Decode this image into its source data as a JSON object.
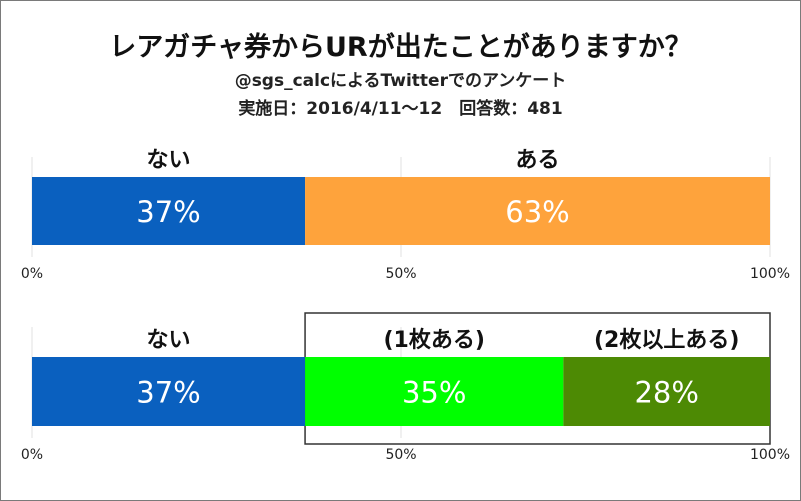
{
  "title": "レアガチャ券からURが出たことがありますか？",
  "subtitle": "@sgs_calcによるTwitterでのアンケート",
  "survey_info": "実施日：2016/4/11〜12　回答数：481",
  "chart_data": [
    {
      "type": "bar",
      "orientation": "horizontal-stacked-100",
      "categories": [
        "ない",
        "ある"
      ],
      "values": [
        37,
        63
      ],
      "value_labels": [
        "37%",
        "63%"
      ],
      "colors": [
        "#0a60bf",
        "#fea33c"
      ],
      "axis_ticks": [
        "0%",
        "50%",
        "100%"
      ],
      "xlim": [
        0,
        100
      ],
      "grid": true
    },
    {
      "type": "bar",
      "orientation": "horizontal-stacked-100",
      "categories": [
        "ない",
        "(1枚ある)",
        "(2枚以上ある)"
      ],
      "values": [
        37,
        35,
        28
      ],
      "value_labels": [
        "37%",
        "35%",
        "28%"
      ],
      "colors": [
        "#0a60bf",
        "#00ff00",
        "#4d8a04"
      ],
      "axis_ticks": [
        "0%",
        "50%",
        "100%"
      ],
      "xlim": [
        0,
        100
      ],
      "grid": true,
      "highlight_group": [
        "(1枚ある)",
        "(2枚以上ある)"
      ]
    }
  ]
}
